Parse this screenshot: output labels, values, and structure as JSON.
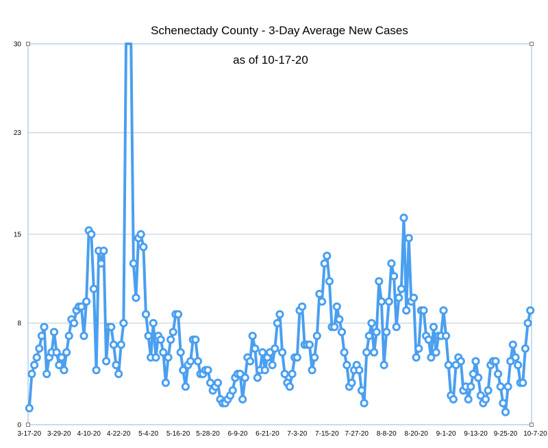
{
  "chart_data": {
    "type": "line",
    "title": "Schenectady County - 3-Day Average New Cases",
    "subtitle": "as of 10-17-20",
    "xlabel": "",
    "ylabel": "",
    "ylim": [
      0,
      30
    ],
    "yticks": [
      0,
      8,
      15,
      23,
      30
    ],
    "grid": true,
    "x_ticks": [
      "3-17-20",
      "3-29-20",
      "4-10-20",
      "4-22-20",
      "5-4-20",
      "5-16-20",
      "5-28-20",
      "6-9-20",
      "6-21-20",
      "7-3-20",
      "7-15-20",
      "7-27-20",
      "8-8-20",
      "8-20-20",
      "9-1-20",
      "9-13-20",
      "9-25-20",
      "10-7-20"
    ],
    "series_color": "#4a9ff0",
    "series": [
      {
        "values": [
          1.3,
          4.0,
          4.7,
          5.3,
          6.0,
          7.0,
          7.7,
          4.0,
          5.3,
          5.7,
          7.3,
          5.7,
          4.7,
          5.3,
          4.3,
          5.7,
          7.0,
          8.3,
          8.0,
          9.0,
          9.3,
          9.3,
          7.0,
          9.7,
          15.3,
          15.0,
          10.7,
          4.3,
          13.7,
          12.7,
          13.7,
          5.0,
          7.7,
          7.7,
          6.3,
          4.7,
          4.0,
          6.3,
          8.0,
          33,
          32,
          33,
          12.7,
          10.0,
          14.7,
          15.0,
          14.0,
          8.7,
          7.0,
          5.3,
          8.0,
          5.3,
          7.0,
          6.7,
          5.7,
          3.3,
          5.3,
          6.7,
          7.3,
          8.7,
          8.7,
          5.7,
          4.3,
          3.0,
          4.7,
          5.0,
          6.7,
          6.7,
          5.0,
          4.0,
          4.0,
          4.3,
          4.3,
          3.3,
          2.7,
          3.0,
          3.3,
          2.0,
          1.7,
          1.7,
          2.0,
          2.3,
          2.7,
          3.7,
          4.0,
          4.0,
          2.0,
          3.7,
          5.3,
          5.0,
          7.0,
          6.0,
          3.7,
          4.3,
          5.7,
          4.3,
          5.3,
          5.7,
          4.7,
          6.0,
          8.0,
          8.7,
          5.7,
          4.0,
          3.3,
          3.0,
          4.0,
          5.3,
          5.3,
          9.0,
          9.3,
          6.3,
          6.3,
          6.3,
          4.3,
          5.3,
          7.0,
          10.3,
          9.7,
          12.7,
          13.3,
          11.3,
          7.7,
          7.7,
          9.3,
          8.3,
          7.3,
          5.7,
          4.7,
          3.0,
          3.3,
          4.3,
          4.7,
          4.3,
          2.7,
          1.7,
          5.7,
          7.0,
          8.0,
          5.7,
          7.3,
          11.3,
          9.7,
          4.7,
          7.3,
          9.7,
          12.7,
          11.7,
          7.7,
          10.0,
          10.7,
          16.3,
          9.0,
          14.7,
          9.7,
          10.0,
          5.3,
          6.0,
          9.0,
          9.0,
          7.0,
          6.7,
          5.3,
          7.7,
          5.7,
          7.0,
          7.0,
          9.0,
          7.0,
          4.7,
          2.3,
          2.0,
          4.7,
          5.3,
          5.0,
          2.7,
          3.0,
          2.0,
          3.0,
          4.0,
          5.0,
          3.7,
          2.3,
          1.7,
          2.0,
          2.7,
          4.7,
          5.0,
          5.0,
          4.0,
          3.0,
          1.7,
          1.0,
          3.0,
          5.0,
          6.3,
          5.3,
          4.7,
          3.3,
          3.3,
          6.0,
          8.0,
          9.0
        ]
      }
    ]
  }
}
